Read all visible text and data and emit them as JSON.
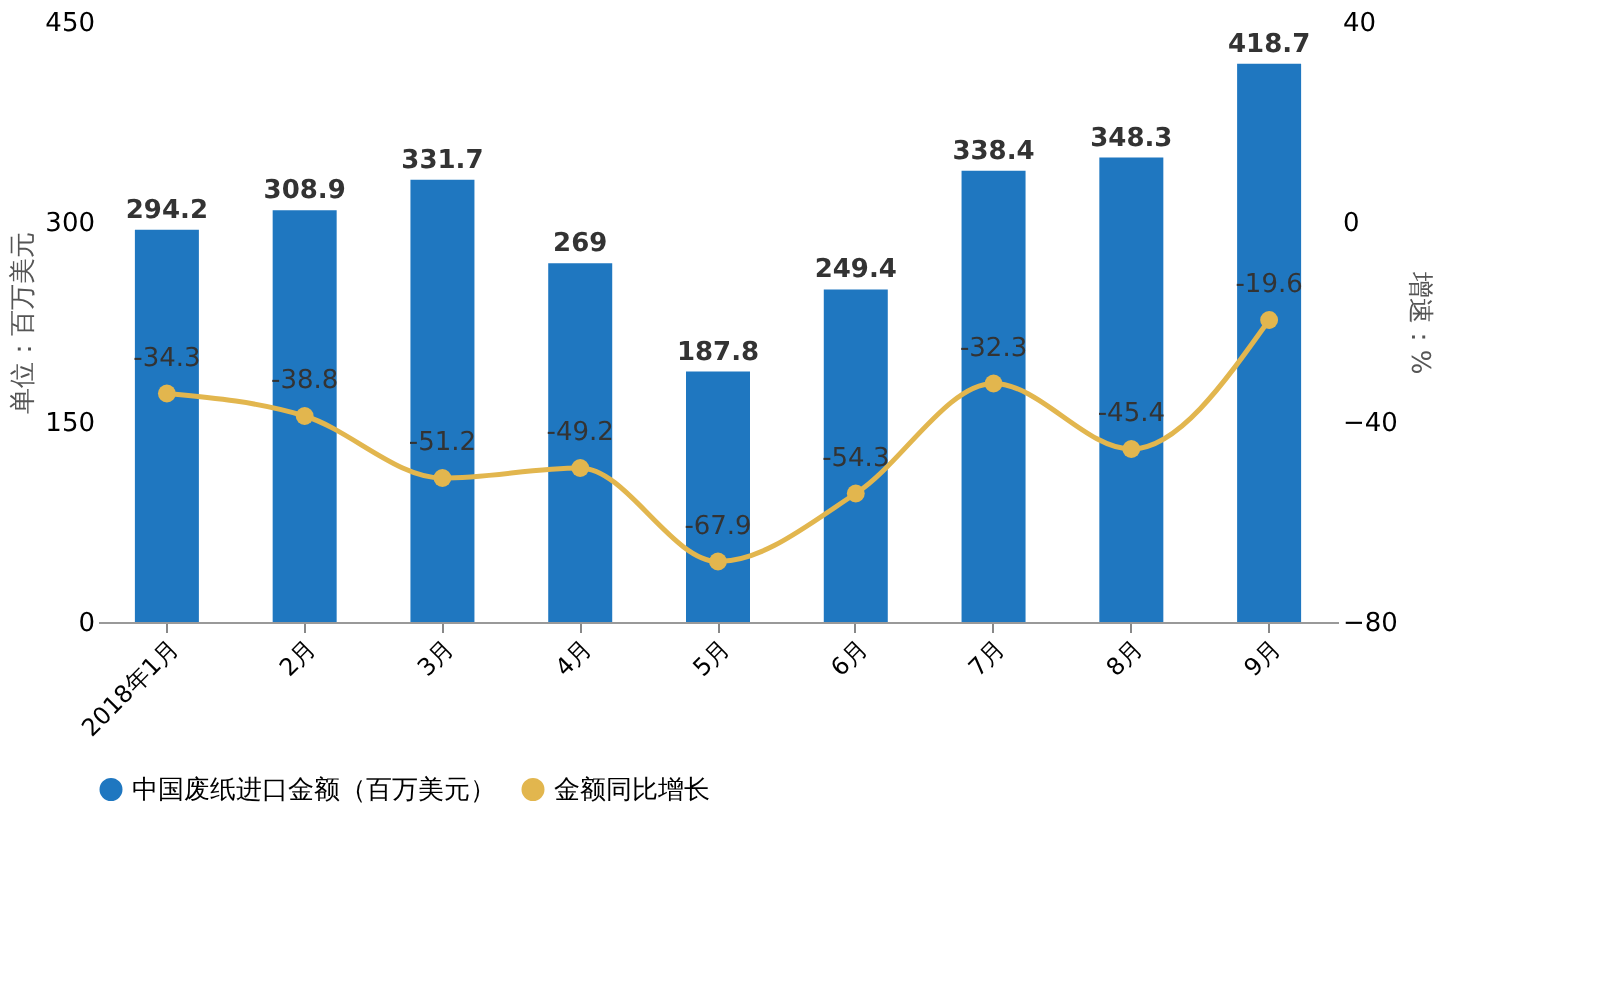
{
  "chart_data": {
    "type": "bar",
    "ylabel": "单位：百万美元",
    "y2label": "增速：%",
    "categories": [
      "2018年1月",
      "2月",
      "3月",
      "4月",
      "5月",
      "6月",
      "7月",
      "8月",
      "9月"
    ],
    "series": [
      {
        "name": "中国废纸进口金额（百万美元）",
        "color": "#1f77c0",
        "values": [
          294.2,
          308.9,
          331.7,
          269,
          187.8,
          249.4,
          338.4,
          348.3,
          418.7
        ]
      },
      {
        "name": "金额同比增长",
        "type": "line",
        "axis": "y2",
        "color": "#e2b64e",
        "values": [
          -34.3,
          -38.8,
          -51.2,
          -49.2,
          -67.9,
          -54.3,
          -32.3,
          -45.4,
          -19.6
        ]
      }
    ],
    "ylim": [
      0,
      450
    ],
    "yticks": [
      0,
      150,
      300,
      450
    ],
    "y2lim": [
      -80,
      40
    ],
    "y2ticks": [
      -80,
      -40,
      0,
      40
    ],
    "data_labels": true,
    "legend": "bottom",
    "grid": false,
    "marker": "circle",
    "line_style": "solid"
  }
}
